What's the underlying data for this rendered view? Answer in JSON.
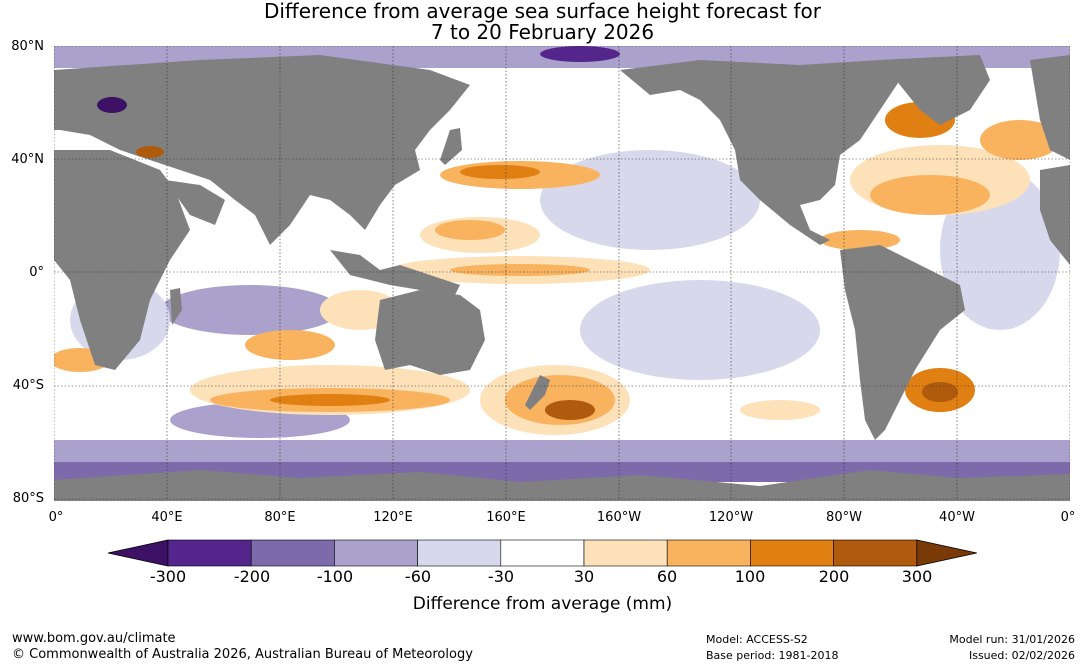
{
  "title": {
    "line1": "Difference from average sea surface height forecast for",
    "line2": "7 to 20 February 2026"
  },
  "lat_labels": [
    "80°N",
    "40°N",
    "0°",
    "40°S",
    "80°S"
  ],
  "lon_labels": [
    "0°",
    "40°E",
    "80°E",
    "120°E",
    "160°E",
    "160°W",
    "120°W",
    "80°W",
    "40°W",
    "0°"
  ],
  "colorbar": {
    "title": "Difference from average (mm)",
    "ticks": [
      "-300",
      "-200",
      "-100",
      "-60",
      "-30",
      "30",
      "60",
      "100",
      "200",
      "300"
    ],
    "colors": [
      "#3d1165",
      "#54268c",
      "#7d6aab",
      "#aaa2cc",
      "#d8d8ec",
      "#ffffff",
      "#fde1b9",
      "#f9b25e",
      "#e07f12",
      "#af5a0d",
      "#7a3a08"
    ]
  },
  "footer": {
    "website": "www.bom.gov.au/climate",
    "copyright": "© Commonwealth of Australia 2026, Australian Bureau of Meteorology",
    "model": "Model: ACCESS-S2",
    "base_period": "Base period: 1981-2018",
    "model_run": "Model run: 31/01/2026",
    "issued": "Issued: 02/02/2026"
  },
  "colors": {
    "land": "#808080",
    "ocean": "#ffffff",
    "grid": "#333333"
  }
}
